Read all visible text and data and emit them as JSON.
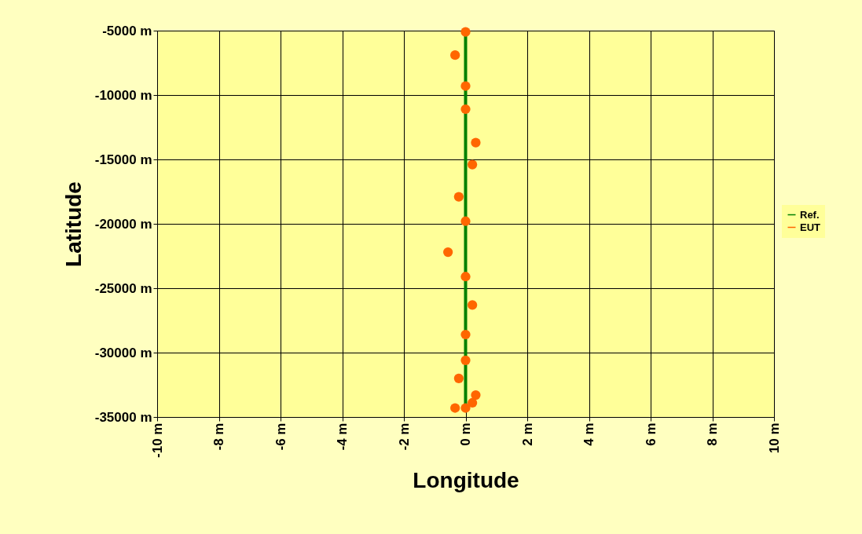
{
  "chart_data": {
    "type": "scatter",
    "xlabel": "Longitude",
    "ylabel": "Latitude",
    "xlim": [
      -10,
      10
    ],
    "ylim": [
      -35000,
      -5000
    ],
    "xticks": [
      {
        "value": -10,
        "label": "-10 m"
      },
      {
        "value": -8,
        "label": "-8 m"
      },
      {
        "value": -6,
        "label": "-6 m"
      },
      {
        "value": -4,
        "label": "-4 m"
      },
      {
        "value": -2,
        "label": "-2 m"
      },
      {
        "value": 0,
        "label": "0 m"
      },
      {
        "value": 2,
        "label": "2 m"
      },
      {
        "value": 4,
        "label": "4 m"
      },
      {
        "value": 6,
        "label": "6 m"
      },
      {
        "value": 8,
        "label": "8 m"
      },
      {
        "value": 10,
        "label": "10 m"
      }
    ],
    "yticks": [
      {
        "value": -35000,
        "label": "-35000 m"
      },
      {
        "value": -30000,
        "label": "-30000 m"
      },
      {
        "value": -25000,
        "label": "-25000 m"
      },
      {
        "value": -20000,
        "label": "-20000 m"
      },
      {
        "value": -15000,
        "label": "-15000 m"
      },
      {
        "value": -10000,
        "label": "-10000 m"
      },
      {
        "value": -5000,
        "label": "-5000 m"
      }
    ],
    "grid": true,
    "legend": "right",
    "series": [
      {
        "name": "Ref.",
        "type": "line",
        "color": "#008000",
        "x": [
          0,
          0
        ],
        "values": [
          -5000,
          -34300
        ]
      },
      {
        "name": "EUT",
        "marker": "circle",
        "color": "#ff6600",
        "x": [
          0,
          -0.34,
          0,
          0,
          0.33,
          0.22,
          -0.22,
          0,
          -0.57,
          0,
          0.22,
          0,
          0,
          -0.22,
          0.33,
          0.22,
          -0.34,
          0
        ],
        "values": [
          -5100,
          -6900,
          -9300,
          -11100,
          -13700,
          -15400,
          -17900,
          -19800,
          -22200,
          -24100,
          -26300,
          -28600,
          -30600,
          -32000,
          -33300,
          -33900,
          -34300,
          -34300
        ]
      }
    ]
  }
}
